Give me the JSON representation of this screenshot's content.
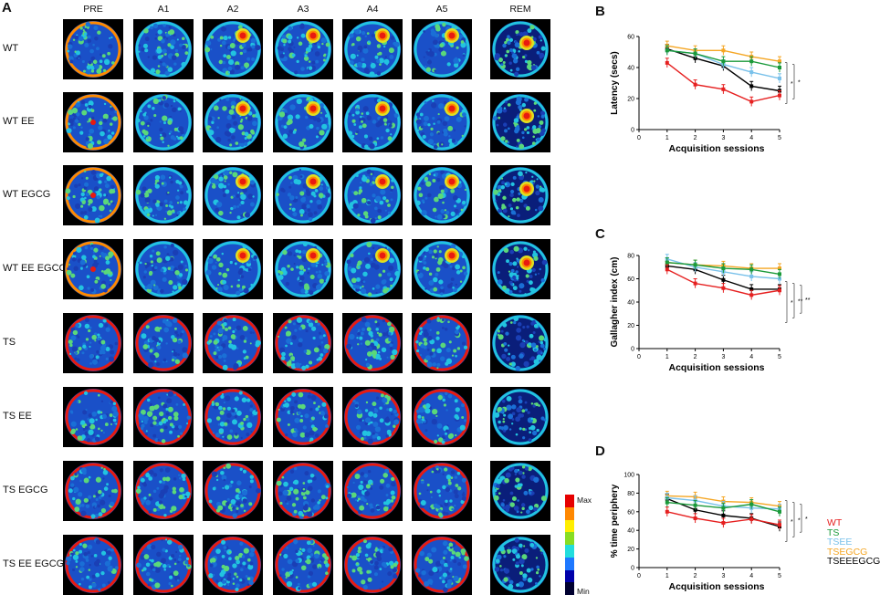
{
  "panels": {
    "A": "A",
    "B": "B",
    "C": "C",
    "D": "D"
  },
  "heatmap": {
    "columns": [
      "PRE",
      "A1",
      "A2",
      "A3",
      "A4",
      "A5",
      "REM"
    ],
    "rows": [
      "WT",
      "WT EE",
      "WT EGCG",
      "WT EE EGCG",
      "TS",
      "TS EE",
      "TS EGCG",
      "TS EE EGCG"
    ],
    "colorbar": {
      "max_label": "Max",
      "min_label": "Min",
      "colors": [
        "#e60000",
        "#ff8800",
        "#ffee00",
        "#88dd22",
        "#22dddd",
        "#1e78ff",
        "#0000aa",
        "#000030"
      ]
    }
  },
  "legend": [
    {
      "name": "WT",
      "color": "#e62020"
    },
    {
      "name": "TS",
      "color": "#1a9a3a"
    },
    {
      "name": "TSEE",
      "color": "#79c1ea"
    },
    {
      "name": "TSEGCG",
      "color": "#f5a623"
    },
    {
      "name": "TSEEEGCG",
      "color": "#000000"
    }
  ],
  "chart_data": [
    {
      "panel": "B",
      "type": "line",
      "title": "",
      "xlabel": "Acquisition sessions",
      "ylabel": "Latency (secs)",
      "xlim": [
        0,
        5
      ],
      "ylim": [
        0,
        60
      ],
      "xticks": [
        "0",
        "1",
        "2",
        "3",
        "4",
        "5"
      ],
      "yticks": [
        "0",
        "20",
        "40",
        "60"
      ],
      "x": [
        1,
        2,
        3,
        4,
        5
      ],
      "series": [
        {
          "name": "WT",
          "values": [
            43,
            29,
            26,
            18,
            22
          ]
        },
        {
          "name": "TS",
          "values": [
            51,
            49,
            44,
            44,
            40
          ]
        },
        {
          "name": "TSEE",
          "values": [
            51,
            49,
            42,
            37,
            33
          ]
        },
        {
          "name": "TSEGCG",
          "values": [
            54,
            51,
            51,
            47,
            44
          ]
        },
        {
          "name": "TSEEEGCG",
          "values": [
            52,
            46,
            41,
            28,
            25
          ]
        }
      ],
      "significance": [
        "*",
        "*"
      ]
    },
    {
      "panel": "C",
      "type": "line",
      "title": "",
      "xlabel": "Acquisition sessions",
      "ylabel": "Gallagher index (cm)",
      "xlim": [
        0,
        5
      ],
      "ylim": [
        0,
        80
      ],
      "xticks": [
        "0",
        "1",
        "2",
        "3",
        "4",
        "5"
      ],
      "yticks": [
        "0",
        "20",
        "40",
        "60",
        "80"
      ],
      "x": [
        1,
        2,
        3,
        4,
        5
      ],
      "series": [
        {
          "name": "WT",
          "values": [
            68,
            56,
            52,
            46,
            50
          ]
        },
        {
          "name": "TS",
          "values": [
            74,
            72,
            69,
            68,
            64
          ]
        },
        {
          "name": "TSEE",
          "values": [
            77,
            70,
            66,
            62,
            60
          ]
        },
        {
          "name": "TSEGCG",
          "values": [
            74,
            72,
            71,
            69,
            69
          ]
        },
        {
          "name": "TSEEEGCG",
          "values": [
            71,
            68,
            59,
            51,
            51
          ]
        }
      ],
      "significance": [
        "*",
        "**",
        "**"
      ]
    },
    {
      "panel": "D",
      "type": "line",
      "title": "",
      "xlabel": "Acquisition sessions",
      "ylabel": "% time periphery",
      "xlim": [
        0,
        5
      ],
      "ylim": [
        0,
        100
      ],
      "xticks": [
        "0",
        "1",
        "2",
        "3",
        "4",
        "5"
      ],
      "yticks": [
        "0",
        "20",
        "40",
        "60",
        "80",
        "100"
      ],
      "x": [
        1,
        2,
        3,
        4,
        5
      ],
      "series": [
        {
          "name": "WT",
          "values": [
            60,
            53,
            48,
            52,
            46
          ]
        },
        {
          "name": "TS",
          "values": [
            70,
            67,
            64,
            68,
            60
          ]
        },
        {
          "name": "TSEE",
          "values": [
            75,
            72,
            66,
            64,
            63
          ]
        },
        {
          "name": "TSEGCG",
          "values": [
            77,
            76,
            71,
            70,
            66
          ]
        },
        {
          "name": "TSEEEGCG",
          "values": [
            74,
            62,
            56,
            53,
            44
          ]
        }
      ],
      "significance": [
        "*",
        "*",
        "*"
      ]
    }
  ]
}
